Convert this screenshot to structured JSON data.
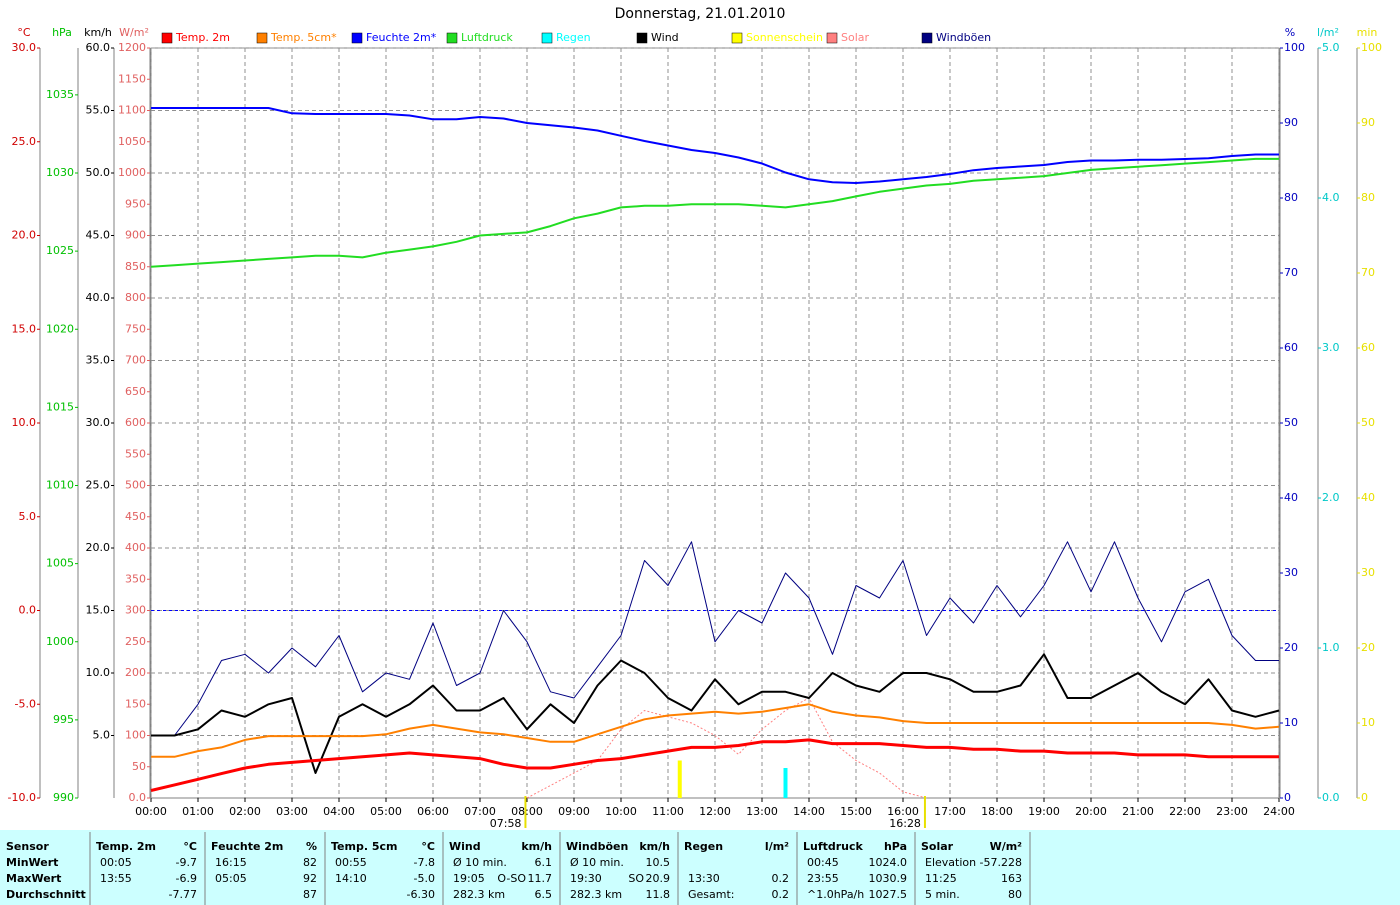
{
  "chart_data": {
    "type": "line",
    "title": "Donnerstag, 21.01.2010",
    "x": [
      0,
      0.5,
      1,
      1.5,
      2,
      2.5,
      3,
      3.5,
      4,
      4.5,
      5,
      5.5,
      6,
      6.5,
      7,
      7.5,
      8,
      8.5,
      9,
      9.5,
      10,
      10.5,
      11,
      11.5,
      12,
      12.5,
      13,
      13.5,
      14,
      14.5,
      15,
      15.5,
      16,
      16.5,
      17,
      17.5,
      18,
      18.5,
      19,
      19.5,
      20,
      20.5,
      21,
      21.5,
      22,
      22.5,
      23,
      23.5,
      24
    ],
    "xlim": [
      0,
      24
    ],
    "xticks": [
      {
        "value": 0,
        "label": "00:00"
      },
      {
        "value": 1,
        "label": "01:00"
      },
      {
        "value": 2,
        "label": "02:00"
      },
      {
        "value": 3,
        "label": "03:00"
      },
      {
        "value": 4,
        "label": "04:00"
      },
      {
        "value": 5,
        "label": "05:00"
      },
      {
        "value": 6,
        "label": "06:00"
      },
      {
        "value": 7,
        "label": "07:00"
      },
      {
        "value": 8,
        "label": "08:00"
      },
      {
        "value": 9,
        "label": "09:00"
      },
      {
        "value": 10,
        "label": "10:00"
      },
      {
        "value": 11,
        "label": "11:00"
      },
      {
        "value": 12,
        "label": "12:00"
      },
      {
        "value": 13,
        "label": "13:00"
      },
      {
        "value": 14,
        "label": "14:00"
      },
      {
        "value": 15,
        "label": "15:00"
      },
      {
        "value": 16,
        "label": "16:00"
      },
      {
        "value": 17,
        "label": "17:00"
      },
      {
        "value": 18,
        "label": "18:00"
      },
      {
        "value": 19,
        "label": "19:00"
      },
      {
        "value": 20,
        "label": "20:00"
      },
      {
        "value": 21,
        "label": "21:00"
      },
      {
        "value": 22,
        "label": "22:00"
      },
      {
        "value": 23,
        "label": "23:00"
      },
      {
        "value": 24,
        "label": "24:00"
      }
    ],
    "grid": true,
    "grid_axis": "km/h",
    "y_axes": [
      {
        "unit": "°C",
        "side": "left",
        "color": "#d00000",
        "lim": [
          -10,
          30
        ],
        "ticks": [
          {
            "value": -10,
            "label": "-10.0"
          },
          {
            "value": -5,
            "label": "-5.0"
          },
          {
            "value": 0,
            "label": "0.0"
          },
          {
            "value": 5,
            "label": "5.0"
          },
          {
            "value": 10,
            "label": "10.0"
          },
          {
            "value": 15,
            "label": "15.0"
          },
          {
            "value": 20,
            "label": "20.0"
          },
          {
            "value": 25,
            "label": "25.0"
          },
          {
            "value": 30,
            "label": "30.0"
          }
        ]
      },
      {
        "unit": "hPa",
        "side": "left",
        "color": "#00c000",
        "lim": [
          990,
          1038
        ],
        "ticks": [
          990,
          995,
          1000,
          1005,
          1010,
          1015,
          1020,
          1025,
          1030,
          1035
        ]
      },
      {
        "unit": "km/h",
        "side": "left",
        "color": "#000000",
        "lim": [
          0,
          60
        ],
        "ticks": [
          {
            "value": 5,
            "label": "5.0"
          },
          {
            "value": 10,
            "label": "10.0"
          },
          {
            "value": 15,
            "label": "15.0"
          },
          {
            "value": 20,
            "label": "20.0"
          },
          {
            "value": 25,
            "label": "25.0"
          },
          {
            "value": 30,
            "label": "30.0"
          },
          {
            "value": 35,
            "label": "35.0"
          },
          {
            "value": 40,
            "label": "40.0"
          },
          {
            "value": 45,
            "label": "45.0"
          },
          {
            "value": 50,
            "label": "50.0"
          },
          {
            "value": 55,
            "label": "55.0"
          },
          {
            "value": 60,
            "label": "60.0"
          }
        ]
      },
      {
        "unit": "W/m²",
        "side": "left",
        "color": "#e06060",
        "lim": [
          0,
          1200
        ],
        "ticks": [
          {
            "value": 0,
            "label": "0.0"
          },
          50,
          100,
          150,
          200,
          250,
          300,
          350,
          400,
          450,
          500,
          550,
          600,
          650,
          700,
          750,
          800,
          850,
          900,
          950,
          1000,
          1050,
          1100,
          1150,
          1200
        ]
      },
      {
        "unit": "%",
        "side": "right",
        "color": "#0000c0",
        "lim": [
          0,
          100
        ],
        "ticks": [
          0,
          10,
          20,
          30,
          40,
          50,
          60,
          70,
          80,
          90,
          100
        ]
      },
      {
        "unit": "l/m²",
        "side": "right",
        "color": "#00c8c8",
        "lim": [
          0,
          5
        ],
        "ticks": [
          {
            "value": 0,
            "label": "0.0"
          },
          {
            "value": 1,
            "label": "1.0"
          },
          {
            "value": 2,
            "label": "2.0"
          },
          {
            "value": 3,
            "label": "3.0"
          },
          {
            "value": 4,
            "label": "4.0"
          },
          {
            "value": 5,
            "label": "5.0"
          }
        ]
      },
      {
        "unit": "min",
        "side": "right",
        "color": "#e8e000",
        "lim": [
          0,
          100
        ],
        "ticks": [
          0,
          10,
          20,
          30,
          40,
          50,
          60,
          70,
          80,
          90,
          100
        ]
      }
    ],
    "series": [
      {
        "name": "Temp. 2m",
        "type": "line",
        "axis": "°C",
        "color": "#ff0000",
        "width": 3,
        "values": [
          -9.6,
          -9.3,
          -9.0,
          -8.7,
          -8.4,
          -8.2,
          -8.1,
          -8.0,
          -7.9,
          -7.8,
          -7.7,
          -7.6,
          -7.7,
          -7.8,
          -7.9,
          -8.2,
          -8.4,
          -8.4,
          -8.2,
          -8.0,
          -7.9,
          -7.7,
          -7.5,
          -7.3,
          -7.3,
          -7.2,
          -7.0,
          -7.0,
          -6.9,
          -7.1,
          -7.1,
          -7.1,
          -7.2,
          -7.3,
          -7.3,
          -7.4,
          -7.4,
          -7.5,
          -7.5,
          -7.6,
          -7.6,
          -7.6,
          -7.7,
          -7.7,
          -7.7,
          -7.8,
          -7.8,
          -7.8,
          -7.8
        ]
      },
      {
        "name": "Temp. 5cm*",
        "type": "line",
        "axis": "°C",
        "color": "#ff8000",
        "width": 2,
        "values": [
          -7.8,
          -7.8,
          -7.5,
          -7.3,
          -6.9,
          -6.7,
          -6.7,
          -6.7,
          -6.7,
          -6.7,
          -6.6,
          -6.3,
          -6.1,
          -6.3,
          -6.5,
          -6.6,
          -6.8,
          -7.0,
          -7.0,
          -6.6,
          -6.2,
          -5.8,
          -5.6,
          -5.5,
          -5.4,
          -5.5,
          -5.4,
          -5.2,
          -5.0,
          -5.4,
          -5.6,
          -5.7,
          -5.9,
          -6.0,
          -6.0,
          -6.0,
          -6.0,
          -6.0,
          -6.0,
          -6.0,
          -6.0,
          -6.0,
          -6.0,
          -6.0,
          -6.0,
          -6.0,
          -6.1,
          -6.3,
          -6.2
        ]
      },
      {
        "name": "Feuchte 2m*",
        "type": "line",
        "axis": "%",
        "color": "#0000ff",
        "width": 2,
        "values": [
          92,
          92,
          92,
          92,
          92,
          92,
          91.3,
          91.2,
          91.2,
          91.2,
          91.2,
          91,
          90.5,
          90.5,
          90.8,
          90.6,
          90,
          89.7,
          89.4,
          89,
          88.3,
          87.6,
          87,
          86.4,
          86,
          85.4,
          84.6,
          83.4,
          82.5,
          82.1,
          82,
          82.2,
          82.5,
          82.8,
          83.2,
          83.7,
          84,
          84.2,
          84.4,
          84.8,
          85,
          85,
          85.1,
          85.1,
          85.2,
          85.3,
          85.6,
          85.8,
          85.8
        ]
      },
      {
        "name": "Luftdruck",
        "type": "line",
        "axis": "hPa",
        "color": "#22dd22",
        "width": 2,
        "values": [
          1024.0,
          1024.1,
          1024.2,
          1024.3,
          1024.4,
          1024.5,
          1024.6,
          1024.7,
          1024.7,
          1024.6,
          1024.9,
          1025.1,
          1025.3,
          1025.6,
          1026.0,
          1026.1,
          1026.2,
          1026.6,
          1027.1,
          1027.4,
          1027.8,
          1027.9,
          1027.9,
          1028.0,
          1028.0,
          1028.0,
          1027.9,
          1027.8,
          1028.0,
          1028.2,
          1028.5,
          1028.8,
          1029.0,
          1029.2,
          1029.3,
          1029.5,
          1029.6,
          1029.7,
          1029.8,
          1030.0,
          1030.2,
          1030.3,
          1030.4,
          1030.5,
          1030.6,
          1030.7,
          1030.8,
          1030.9,
          1030.9
        ]
      },
      {
        "name": "Regen",
        "type": "bar",
        "axis": "l/m²",
        "color": "#00ffff",
        "x": [
          13.5
        ],
        "values": [
          0.2
        ]
      },
      {
        "name": "Wind",
        "type": "line",
        "axis": "km/h",
        "color": "#000000",
        "width": 2,
        "values": [
          5.0,
          5.0,
          5.5,
          7,
          6.5,
          7.5,
          8,
          2,
          6.5,
          7.5,
          6.5,
          7.5,
          9,
          7,
          7,
          8,
          5.5,
          7.5,
          6,
          9,
          11,
          10,
          8,
          7,
          9.5,
          7.5,
          8.5,
          8.5,
          8,
          10,
          9,
          8.5,
          10,
          10,
          9.5,
          8.5,
          8.5,
          9,
          11.5,
          8,
          8,
          9,
          10,
          8.5,
          7.5,
          9.5,
          7,
          6.5,
          7
        ]
      },
      {
        "name": "Sonnenschein",
        "type": "bar",
        "axis": "min",
        "color": "#ffff00",
        "x": [
          11.25
        ],
        "values": [
          5
        ]
      },
      {
        "name": "Solar",
        "type": "line",
        "axis": "W/m²",
        "color": "#ff8080",
        "width": 1,
        "dotted": true,
        "values": [
          null,
          null,
          null,
          null,
          null,
          null,
          null,
          null,
          null,
          null,
          null,
          null,
          null,
          null,
          null,
          null,
          0,
          20,
          40,
          60,
          110,
          140,
          130,
          120,
          100,
          70,
          110,
          140,
          160,
          90,
          60,
          40,
          10,
          0,
          null,
          null,
          null,
          null,
          null,
          null,
          null,
          null,
          null,
          null,
          null,
          null,
          null,
          null,
          null
        ]
      },
      {
        "name": "Windböen",
        "type": "line",
        "axis": "km/h",
        "color": "#000080",
        "width": 1,
        "values": [
          5,
          5,
          7.5,
          11,
          11.5,
          10,
          12,
          10.5,
          13,
          8.5,
          10,
          9.5,
          14,
          9,
          10,
          15,
          12.5,
          8.5,
          8,
          10.5,
          13,
          19,
          17,
          20.5,
          12.5,
          15,
          14,
          18,
          16,
          11.5,
          17,
          16,
          19,
          13,
          16,
          14,
          17,
          14.5,
          17,
          20.5,
          16.5,
          20.5,
          16,
          12.5,
          16.5,
          17.5,
          13,
          11,
          11
        ]
      }
    ],
    "reference_line": {
      "axis": "W/m²",
      "value": 300,
      "color": "#0000ff"
    },
    "annotations": [
      {
        "x": 7.967,
        "label": "07:58"
      },
      {
        "x": 16.467,
        "label": "16:28"
      }
    ]
  },
  "summary": {
    "row_labels": [
      "Sensor",
      "MinWert",
      "MaxWert",
      "Durchschnitt"
    ],
    "groups": [
      {
        "name": "Temp. 2m",
        "unit": "°C",
        "rows": [
          [
            "00:05",
            "-9.7"
          ],
          [
            "13:55",
            "-6.9"
          ],
          [
            null,
            "-7.77"
          ]
        ]
      },
      {
        "name": "Feuchte 2m",
        "unit": "%",
        "rows": [
          [
            "16:15",
            "82"
          ],
          [
            "05:05",
            "92"
          ],
          [
            null,
            "87"
          ]
        ]
      },
      {
        "name": "Temp. 5cm",
        "unit": "°C",
        "rows": [
          [
            "00:55",
            "-7.8"
          ],
          [
            "14:10",
            "-5.0"
          ],
          [
            null,
            "-6.30"
          ]
        ]
      },
      {
        "name": "Wind",
        "unit": "km/h",
        "rows": [
          [
            "Ø 10 min.",
            "6.1"
          ],
          [
            "19:05",
            "O-SO",
            "11.7"
          ],
          [
            "282.3 km",
            "6.5"
          ]
        ]
      },
      {
        "name": "Windböen",
        "unit": "km/h",
        "rows": [
          [
            "Ø 10 min.",
            "10.5"
          ],
          [
            "19:30",
            "SO",
            "20.9"
          ],
          [
            "282.3 km",
            "11.8"
          ]
        ]
      },
      {
        "name": "Regen",
        "unit": "l/m²",
        "rows": [
          [
            null,
            null
          ],
          [
            "13:30",
            "0.2"
          ],
          [
            "Gesamt:",
            "0.2"
          ]
        ]
      },
      {
        "name": "Luftdruck",
        "unit": "hPa",
        "rows": [
          [
            "00:45",
            "1024.0"
          ],
          [
            "23:55",
            "1030.9"
          ],
          [
            "^1.0hPa/h",
            "1027.5"
          ]
        ]
      },
      {
        "name": "Solar",
        "unit": "W/m²",
        "rows": [
          [
            "Elevation",
            "-57.228"
          ],
          [
            "11:25",
            "163"
          ],
          [
            "5 min.",
            "80"
          ]
        ]
      }
    ]
  }
}
